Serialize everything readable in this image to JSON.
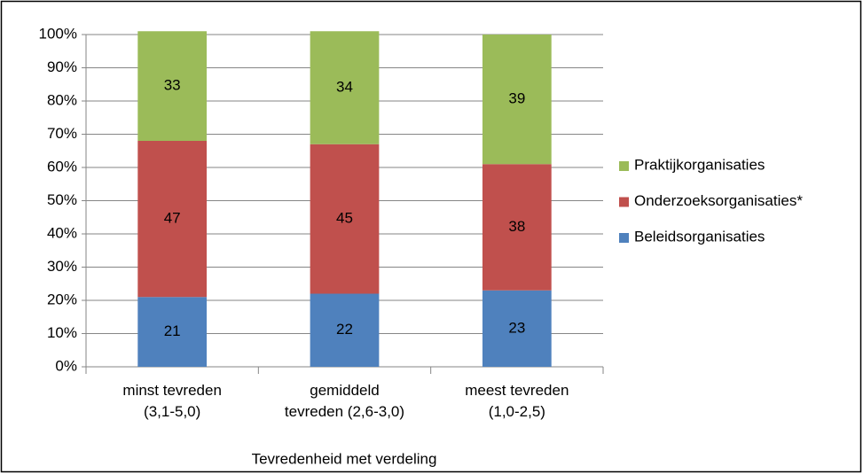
{
  "chart_data": {
    "type": "stacked_bar",
    "x_label": "Tevredenheid met verdeling",
    "categories": [
      "minst tevreden\n(3,1-5,0)",
      "gemiddeld\ntevreden (2,6-3,0)",
      "meest tevreden\n(1,0-2,5)"
    ],
    "series": [
      {
        "name": "Beleidsorganisaties",
        "color": "#4f81bd",
        "values": [
          21,
          22,
          23
        ]
      },
      {
        "name": "Onderzoeksorganisaties*",
        "color": "#c0504d",
        "values": [
          47,
          45,
          38
        ]
      },
      {
        "name": "Praktijkorganisaties",
        "color": "#9bbb59",
        "values": [
          33,
          34,
          39
        ]
      }
    ],
    "ylim": [
      0,
      100
    ],
    "yticks": [
      {
        "value": 0,
        "label": "0%"
      },
      {
        "value": 10,
        "label": "10%"
      },
      {
        "value": 20,
        "label": "20%"
      },
      {
        "value": 30,
        "label": "30%"
      },
      {
        "value": 40,
        "label": "40%"
      },
      {
        "value": 50,
        "label": "50%"
      },
      {
        "value": 60,
        "label": "60%"
      },
      {
        "value": 70,
        "label": "70%"
      },
      {
        "value": 80,
        "label": "80%"
      },
      {
        "value": 90,
        "label": "90%"
      },
      {
        "value": 100,
        "label": "100%"
      }
    ],
    "grid": true,
    "legend": "right"
  }
}
